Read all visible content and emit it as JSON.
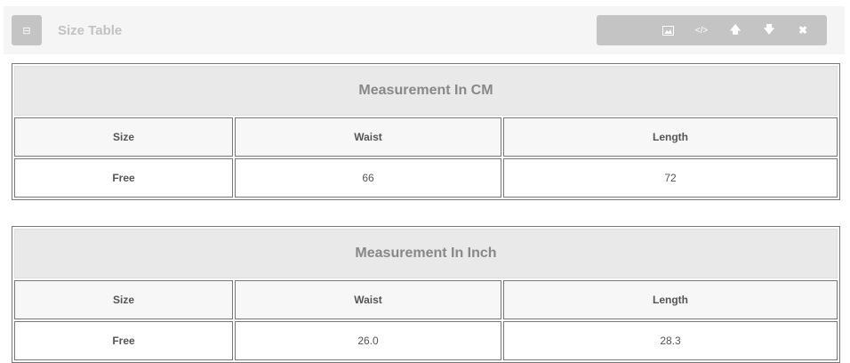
{
  "header": {
    "title": "Size Table",
    "collapse_icon": "collapse-icon",
    "tools": [
      "image-icon",
      "code-icon",
      "arrow-up-icon",
      "arrow-down-icon",
      "close-icon"
    ]
  },
  "tables": [
    {
      "caption": "Measurement In CM",
      "columns": [
        "Size",
        "Waist",
        "Length"
      ],
      "rows": [
        [
          "Free",
          "66",
          "72"
        ]
      ]
    },
    {
      "caption": "Measurement In Inch",
      "columns": [
        "Size",
        "Waist",
        "Length"
      ],
      "rows": [
        [
          "Free",
          "26.0",
          "28.3"
        ]
      ]
    }
  ]
}
